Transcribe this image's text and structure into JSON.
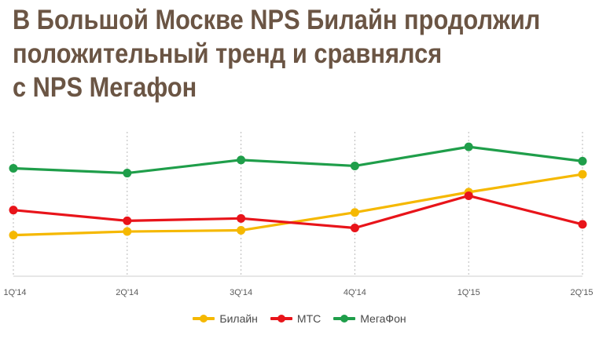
{
  "title": {
    "lines": [
      "В Большой Москве NPS Билайн продолжил",
      "положительный тренд и сравнялся",
      "с NPS Мегафон"
    ]
  },
  "chart_data": {
    "type": "line",
    "title": "В Большой Москве NPS Билайн продолжил положительный тренд и сравнялся с NPS Мегафон",
    "xlabel": "",
    "ylabel": "",
    "categories": [
      "1Q'14",
      "2Q'14",
      "3Q'14",
      "4Q'14",
      "1Q'15",
      "2Q'15"
    ],
    "y_axis_note": "no numeric y scale shown; values are estimated relative positions (0–100)",
    "ylim": [
      0,
      100
    ],
    "grid": "vertical dashed gridlines at each category",
    "legend": "bottom-center",
    "series": [
      {
        "name": "Билайн",
        "color": "#f5b800",
        "values": [
          20,
          23,
          24,
          39,
          56,
          71
        ]
      },
      {
        "name": "МТС",
        "color": "#e8141a",
        "values": [
          41,
          32,
          34,
          26,
          53,
          29
        ]
      },
      {
        "name": "МегаФон",
        "color": "#1f9e4a",
        "values": [
          76,
          72,
          83,
          78,
          94,
          82
        ]
      }
    ]
  }
}
